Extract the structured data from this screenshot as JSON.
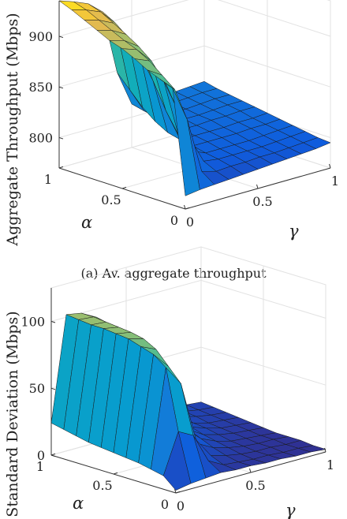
{
  "figure": {
    "caption_a": "(a) Av. aggregate throughput",
    "caption_b": ""
  },
  "chart_data": [
    {
      "type": "surface",
      "title": "",
      "xlabel": "γ",
      "ylabel": "α",
      "zlabel": "Aggregate Throughput (Mbps)",
      "xlim": [
        0,
        1
      ],
      "ylim": [
        0,
        1
      ],
      "zlim": [
        770,
        935
      ],
      "xticks": [
        0,
        0.5,
        1
      ],
      "yticks": [
        0,
        0.5,
        1
      ],
      "zticks": [
        800,
        850,
        900
      ],
      "grid": true,
      "colormap": "parula",
      "gamma": [
        0,
        0.1,
        0.2,
        0.3,
        0.4,
        0.5,
        0.6,
        0.7,
        0.8,
        0.9,
        1.0
      ],
      "alpha": [
        0,
        0.1,
        0.2,
        0.3,
        0.4,
        0.5,
        0.6,
        0.7,
        0.8,
        0.9,
        1.0
      ],
      "z": [
        [
          783,
          785,
          786,
          787,
          788,
          789,
          790,
          791,
          792,
          793,
          795
        ],
        [
          885,
          850,
          795,
          791,
          792,
          792,
          793,
          793,
          794,
          795,
          796
        ],
        [
          890,
          876,
          825,
          797,
          795,
          795,
          795,
          795,
          796,
          797,
          798
        ],
        [
          895,
          886,
          850,
          803,
          797,
          797,
          797,
          797,
          798,
          799,
          800
        ],
        [
          902,
          896,
          872,
          815,
          800,
          800,
          800,
          800,
          801,
          801,
          802
        ],
        [
          908,
          903,
          888,
          835,
          802,
          802,
          802,
          802,
          803,
          803,
          804
        ],
        [
          912,
          908,
          898,
          860,
          805,
          804,
          804,
          805,
          805,
          806,
          806
        ],
        [
          918,
          914,
          906,
          880,
          812,
          806,
          806,
          806,
          807,
          808,
          808
        ],
        [
          924,
          920,
          913,
          895,
          822,
          808,
          808,
          808,
          809,
          810,
          810
        ],
        [
          930,
          926,
          920,
          905,
          835,
          810,
          810,
          810,
          811,
          812,
          812
        ],
        [
          935,
          930,
          924,
          912,
          848,
          813,
          812,
          812,
          813,
          814,
          815
        ]
      ]
    },
    {
      "type": "surface",
      "title": "",
      "xlabel": "γ",
      "ylabel": "α",
      "zlabel": "Standard Deviation (Mbps)",
      "xlim": [
        0,
        1
      ],
      "ylim": [
        0,
        1
      ],
      "zlim": [
        0,
        125
      ],
      "xticks": [
        0,
        0.5,
        1
      ],
      "yticks": [
        0,
        0.5,
        1
      ],
      "zticks": [
        0,
        50,
        100
      ],
      "grid": true,
      "colormap": "parula",
      "gamma": [
        0,
        0.1,
        0.2,
        0.3,
        0.4,
        0.5,
        0.6,
        0.7,
        0.8,
        0.9,
        1.0
      ],
      "alpha": [
        0,
        0.1,
        0.2,
        0.3,
        0.4,
        0.5,
        0.6,
        0.7,
        0.8,
        0.9,
        1.0
      ],
      "z": [
        [
          2,
          4,
          5,
          6,
          5,
          5,
          4,
          4,
          3,
          3,
          2
        ],
        [
          10,
          40,
          34,
          12,
          6,
          5,
          4,
          4,
          3,
          3,
          2
        ],
        [
          12,
          85,
          70,
          25,
          10,
          7,
          5,
          4,
          4,
          3,
          3
        ],
        [
          14,
          92,
          80,
          40,
          16,
          10,
          7,
          5,
          4,
          4,
          3
        ],
        [
          15,
          95,
          90,
          60,
          24,
          14,
          9,
          6,
          5,
          4,
          3
        ],
        [
          16,
          98,
          95,
          75,
          34,
          18,
          11,
          8,
          6,
          5,
          4
        ],
        [
          17,
          99,
          97,
          82,
          44,
          22,
          14,
          10,
          7,
          6,
          5
        ],
        [
          18,
          100,
          98,
          86,
          52,
          27,
          16,
          11,
          8,
          7,
          6
        ],
        [
          20,
          100,
          99,
          89,
          58,
          31,
          19,
          13,
          10,
          8,
          7
        ],
        [
          22,
          101,
          100,
          92,
          63,
          35,
          22,
          15,
          11,
          9,
          8
        ],
        [
          24,
          102,
          100,
          94,
          67,
          38,
          24,
          17,
          12,
          10,
          9
        ]
      ]
    }
  ]
}
